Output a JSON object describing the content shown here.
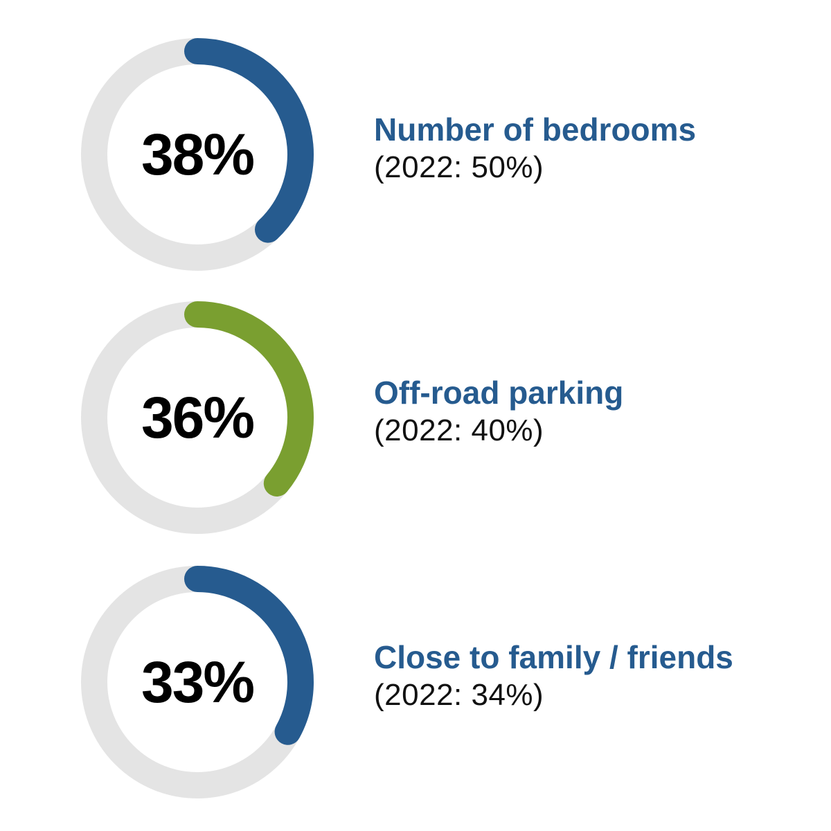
{
  "chart_data": {
    "type": "donut",
    "colors": {
      "track": "#e4e4e4",
      "blue": "#265b8f",
      "green": "#7a9f30"
    },
    "items": [
      {
        "value": 38,
        "value_label": "38%",
        "label": "Number of bedrooms",
        "comparison": "(2022: 50%)",
        "color": "#265b8f"
      },
      {
        "value": 36,
        "value_label": "36%",
        "label": "Off-road parking",
        "comparison": "(2022: 40%)",
        "color": "#7a9f30"
      },
      {
        "value": 33,
        "value_label": "33%",
        "label": "Close to family / friends",
        "comparison": "(2022: 34%)",
        "color": "#265b8f"
      }
    ]
  }
}
